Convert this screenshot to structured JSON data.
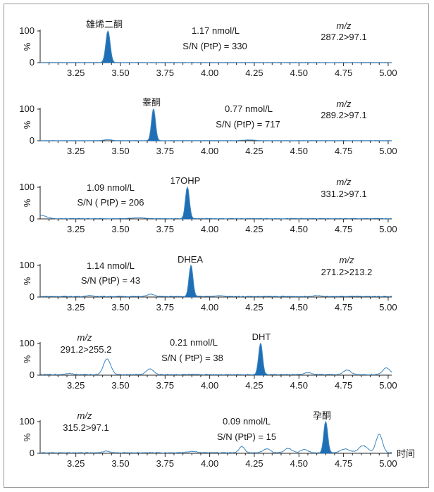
{
  "chart_data": [
    {
      "type": "area",
      "peak_label": "雄烯二酮",
      "concentration": "1.17 nmol/L",
      "sn": "S/N (PtP) = 330",
      "mz_label": "m/z",
      "transition": "287.2>97.1",
      "y_label": "%",
      "y_ticks": [
        "0",
        "100"
      ],
      "x_ticks": [
        "3.25",
        "3.50",
        "3.75",
        "4.00",
        "4.25",
        "4.50",
        "4.75",
        "5.00"
      ],
      "xlim": [
        3.05,
        5.02
      ],
      "ylim": [
        0,
        100
      ],
      "peaks": [
        {
          "rt": 3.43,
          "height": 100,
          "width": 0.022
        }
      ],
      "minor_peaks": [],
      "noise": 0.6
    },
    {
      "type": "area",
      "peak_label": "睾酮",
      "concentration": "0.77 nmol/L",
      "sn": "S/N (PtP) = 717",
      "mz_label": "m/z",
      "transition": "289.2>97.1",
      "y_label": "%",
      "y_ticks": [
        "0",
        "100"
      ],
      "x_ticks": [
        "3.25",
        "3.50",
        "3.75",
        "4.00",
        "4.25",
        "4.50",
        "4.75",
        "5.00"
      ],
      "xlim": [
        3.05,
        5.02
      ],
      "ylim": [
        0,
        100
      ],
      "peaks": [
        {
          "rt": 3.685,
          "height": 100,
          "width": 0.02
        }
      ],
      "minor_peaks": [
        {
          "rt": 3.43,
          "height": 3,
          "width": 0.02
        },
        {
          "rt": 4.22,
          "height": 2,
          "width": 0.03
        }
      ],
      "noise": 0.7
    },
    {
      "type": "area",
      "peak_label": "17OHP",
      "concentration": "1.09 nmol/L",
      "sn": "S/N ( PtP) = 206",
      "mz_label": "m/z",
      "transition": "331.2>97.1",
      "y_label": "%",
      "y_ticks": [
        "0",
        "100"
      ],
      "x_ticks": [
        "3.25",
        "3.50",
        "3.75",
        "4.00",
        "4.25",
        "4.50",
        "4.75",
        "5.00"
      ],
      "xlim": [
        3.05,
        5.02
      ],
      "ylim": [
        0,
        100
      ],
      "peaks": [
        {
          "rt": 3.875,
          "height": 100,
          "width": 0.02
        }
      ],
      "minor_peaks": [
        {
          "rt": 3.06,
          "height": 10,
          "width": 0.025
        },
        {
          "rt": 3.6,
          "height": 3,
          "width": 0.03
        }
      ],
      "noise": 1.2
    },
    {
      "type": "area",
      "peak_label": "DHEA",
      "concentration": "1.14 nmol/L",
      "sn": "S/N (PtP) = 43",
      "mz_label": "m/z",
      "transition": "271.2>213.2",
      "y_label": "%",
      "y_ticks": [
        "0",
        "100"
      ],
      "x_ticks": [
        "3.25",
        "3.50",
        "3.75",
        "4.00",
        "4.25",
        "4.50",
        "4.75",
        "5.00"
      ],
      "xlim": [
        3.05,
        5.02
      ],
      "ylim": [
        0,
        100
      ],
      "peaks": [
        {
          "rt": 3.895,
          "height": 100,
          "width": 0.02
        }
      ],
      "minor_peaks": [
        {
          "rt": 3.67,
          "height": 7,
          "width": 0.02
        },
        {
          "rt": 3.33,
          "height": 3,
          "width": 0.02
        },
        {
          "rt": 4.05,
          "height": 3,
          "width": 0.02
        },
        {
          "rt": 4.6,
          "height": 3,
          "width": 0.02
        }
      ],
      "noise": 2.0
    },
    {
      "type": "area",
      "peak_label": "DHT",
      "concentration": "0.21 nmol/L",
      "sn": "S/N ( PtP) = 38",
      "mz_label": "m/z",
      "transition": "291.2>255.2",
      "y_label": "%",
      "y_ticks": [
        "0",
        "100"
      ],
      "x_ticks": [
        "3.25",
        "3.50",
        "3.75",
        "4.00",
        "4.25",
        "4.50",
        "4.75",
        "5.00"
      ],
      "xlim": [
        3.05,
        5.02
      ],
      "ylim": [
        0,
        100
      ],
      "peaks": [
        {
          "rt": 4.285,
          "height": 100,
          "width": 0.02
        }
      ],
      "minor_peaks": [
        {
          "rt": 3.425,
          "height": 50,
          "width": 0.02
        },
        {
          "rt": 3.665,
          "height": 18,
          "width": 0.02
        },
        {
          "rt": 4.77,
          "height": 15,
          "width": 0.02
        },
        {
          "rt": 4.99,
          "height": 22,
          "width": 0.02
        },
        {
          "rt": 3.21,
          "height": 4,
          "width": 0.02
        },
        {
          "rt": 4.55,
          "height": 6,
          "width": 0.02
        }
      ],
      "noise": 2.0
    },
    {
      "type": "area",
      "peak_label": "孕酮",
      "concentration": "0.09 nmol/L",
      "sn": "S/N (PtP) = 15",
      "mz_label": "m/z",
      "transition": "315.2>97.1",
      "y_label": "%",
      "y_ticks": [
        "0",
        "100"
      ],
      "x_ticks": [
        "3.25",
        "3.50",
        "3.75",
        "4.00",
        "4.25",
        "4.50",
        "4.75",
        "5.00"
      ],
      "x_label": "时间",
      "xlim": [
        3.05,
        5.02
      ],
      "ylim": [
        0,
        100
      ],
      "peaks": [
        {
          "rt": 4.65,
          "height": 100,
          "width": 0.02
        }
      ],
      "minor_peaks": [
        {
          "rt": 4.95,
          "height": 58,
          "width": 0.018
        },
        {
          "rt": 4.18,
          "height": 20,
          "width": 0.015
        },
        {
          "rt": 4.32,
          "height": 12,
          "width": 0.02
        },
        {
          "rt": 4.44,
          "height": 14,
          "width": 0.02
        },
        {
          "rt": 4.53,
          "height": 10,
          "width": 0.02
        },
        {
          "rt": 4.76,
          "height": 12,
          "width": 0.025
        },
        {
          "rt": 4.86,
          "height": 22,
          "width": 0.025
        },
        {
          "rt": 3.42,
          "height": 5,
          "width": 0.02
        },
        {
          "rt": 3.9,
          "height": 4,
          "width": 0.03
        }
      ],
      "noise": 2.0
    }
  ],
  "colors": {
    "trace": "#3a86c4",
    "fill": "#1f6fb5",
    "axis": "#222222",
    "frame": "#9a9a9a"
  }
}
